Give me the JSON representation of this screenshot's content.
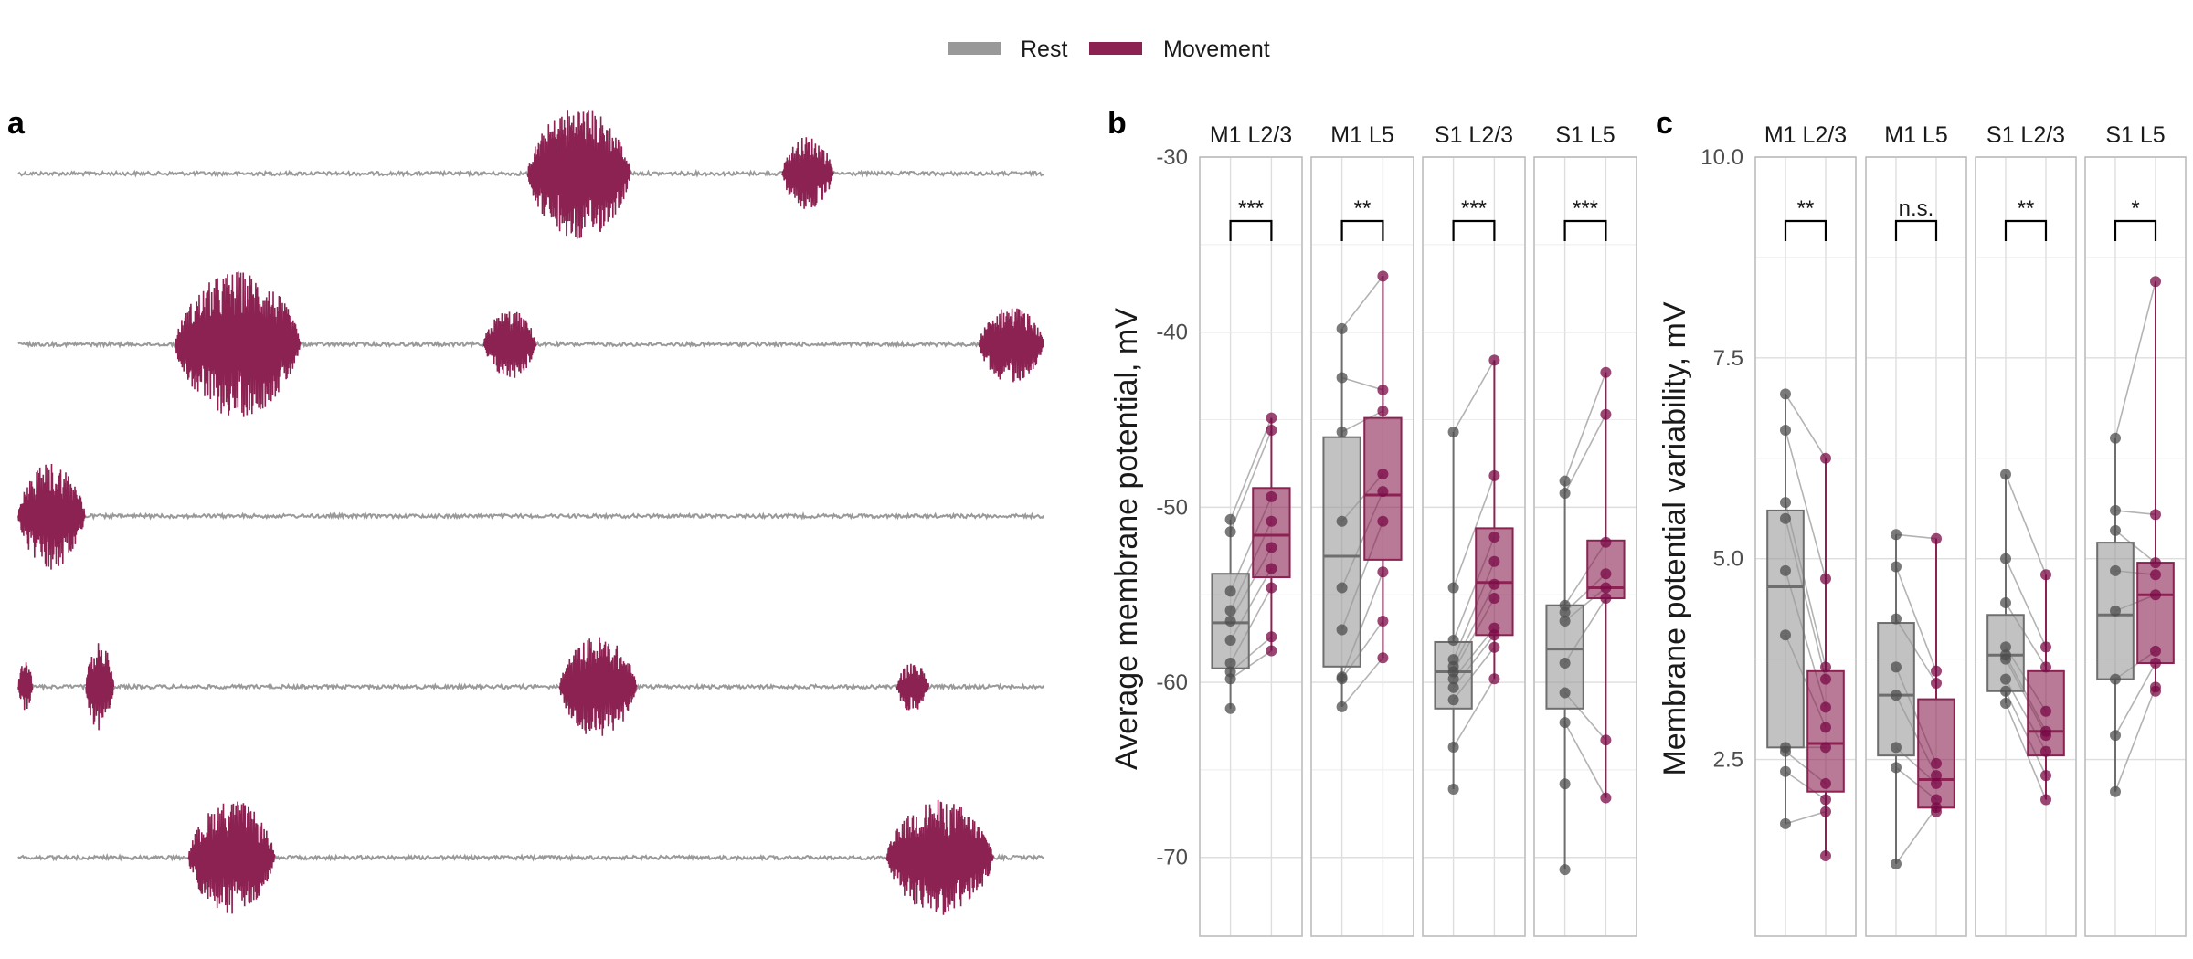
{
  "legend": {
    "items": [
      {
        "label": "Rest",
        "color": "#999999"
      },
      {
        "label": "Movement",
        "color": "#8b2252"
      }
    ]
  },
  "colors": {
    "rest": "#999999",
    "rest_point": "#4d4d4d",
    "movement": "#8b2252",
    "movement_point": "#7a0a45",
    "grid": "#dedede",
    "panel_border": "#bdbdbd",
    "pair_line": "#b3b3b3"
  },
  "panels": {
    "a": {
      "letter": "a"
    },
    "b": {
      "letter": "b"
    },
    "c": {
      "letter": "c"
    }
  },
  "chart_data": [
    {
      "type": "line",
      "panel": "a",
      "description_of_series": "five example membrane traces with movement bursts",
      "traces": [
        {
          "bursts": [
            [
              0.497,
              0.597,
              1.0
            ],
            [
              0.745,
              0.795,
              0.55
            ]
          ]
        },
        {
          "bursts": [
            [
              0.153,
              0.275,
              0.95
            ],
            [
              0.454,
              0.505,
              0.45
            ],
            [
              0.937,
              1.0,
              0.5
            ]
          ]
        },
        {
          "bursts": [
            [
              0.0,
              0.065,
              0.85
            ]
          ]
        },
        {
          "bursts": [
            [
              0.0,
              0.014,
              0.4
            ],
            [
              0.066,
              0.093,
              0.7
            ],
            [
              0.528,
              0.603,
              0.8
            ],
            [
              0.857,
              0.888,
              0.4
            ]
          ]
        },
        {
          "bursts": [
            [
              0.166,
              0.25,
              0.85
            ],
            [
              0.847,
              0.951,
              0.85
            ]
          ]
        }
      ]
    },
    {
      "type": "box",
      "panel": "b",
      "ylabel": "Average membrane potential, mV",
      "ylim": [
        -74.5,
        -30
      ],
      "yticks": [
        -30,
        -40,
        -50,
        -60,
        -70
      ],
      "groups": [
        "M1 L2/3",
        "M1 L5",
        "S1 L2/3",
        "S1 L5"
      ],
      "significance": [
        "***",
        "**",
        "***",
        "***"
      ],
      "series": [
        {
          "name": "Rest",
          "boxes": [
            {
              "q1": -59.2,
              "median": -56.6,
              "q3": -53.8,
              "min": -61.5,
              "max": -50.7
            },
            {
              "q1": -59.1,
              "median": -52.8,
              "q3": -46.0,
              "min": -61.4,
              "max": -39.8
            },
            {
              "q1": -61.5,
              "median": -59.4,
              "q3": -57.7,
              "min": -66.1,
              "max": -45.7
            },
            {
              "q1": -61.5,
              "median": -58.1,
              "q3": -55.6,
              "min": -70.7,
              "max": -48.5
            }
          ],
          "points": [
            [
              -50.7,
              -51.4,
              -54.8,
              -55.9,
              -56.5,
              -57.6,
              -58.9,
              -59.4,
              -59.8,
              -61.5
            ],
            [
              -39.8,
              -42.6,
              -45.7,
              -50.8,
              -54.6,
              -57.0,
              -59.7,
              -59.8,
              -61.4
            ],
            [
              -45.7,
              -54.6,
              -57.6,
              -58.7,
              -59.1,
              -59.4,
              -59.8,
              -60.3,
              -61.0,
              -63.7,
              -66.1
            ],
            [
              -48.5,
              -49.2,
              -55.6,
              -56.0,
              -56.5,
              -58.9,
              -60.6,
              -62.3,
              -65.8,
              -70.7
            ]
          ]
        },
        {
          "name": "Movement",
          "boxes": [
            {
              "q1": -54.0,
              "median": -51.6,
              "q3": -48.9,
              "min": -58.2,
              "max": -44.9
            },
            {
              "q1": -53.0,
              "median": -49.3,
              "q3": -44.9,
              "min": -58.6,
              "max": -36.8
            },
            {
              "q1": -57.3,
              "median": -54.3,
              "q3": -51.2,
              "min": -59.8,
              "max": -41.6
            },
            {
              "q1": -55.2,
              "median": -54.6,
              "q3": -51.9,
              "min": -66.6,
              "max": -42.3
            }
          ],
          "points": [
            [
              -44.9,
              -45.6,
              -49.4,
              -50.8,
              -52.3,
              -53.5,
              -54.6,
              -57.4,
              -58.2
            ],
            [
              -36.8,
              -43.3,
              -44.5,
              -48.1,
              -49.1,
              -50.8,
              -53.7,
              -56.5,
              -58.6
            ],
            [
              -41.6,
              -48.2,
              -51.7,
              -53.1,
              -54.4,
              -55.2,
              -56.9,
              -57.3,
              -58.0,
              -59.8
            ],
            [
              -42.3,
              -44.7,
              -52.0,
              -53.8,
              -54.6,
              -55.2,
              -63.3,
              -66.6
            ]
          ]
        }
      ]
    },
    {
      "type": "box",
      "panel": "c",
      "ylabel": "Membrane potential variability, mV",
      "ylim": [
        0.3,
        10.0
      ],
      "yticks": [
        2.5,
        5.0,
        7.5,
        10.0
      ],
      "ytick_labels": [
        "2.5",
        "5.0",
        "7.5",
        "10.0"
      ],
      "groups": [
        "M1 L2/3",
        "M1 L5",
        "S1 L2/3",
        "S1 L5"
      ],
      "significance": [
        "**",
        "n.s.",
        "**",
        "*"
      ],
      "series": [
        {
          "name": "Rest",
          "boxes": [
            {
              "q1": 2.65,
              "median": 4.65,
              "q3": 5.6,
              "min": 1.7,
              "max": 7.05
            },
            {
              "q1": 2.55,
              "median": 3.3,
              "q3": 4.2,
              "min": 1.2,
              "max": 5.3
            },
            {
              "q1": 3.35,
              "median": 3.8,
              "q3": 4.3,
              "min": 3.2,
              "max": 6.05
            },
            {
              "q1": 3.5,
              "median": 4.3,
              "q3": 5.2,
              "min": 2.1,
              "max": 6.5
            }
          ],
          "points": [
            [
              7.05,
              6.6,
              5.7,
              5.5,
              4.85,
              4.05,
              2.65,
              2.6,
              2.35,
              1.7
            ],
            [
              5.3,
              4.9,
              4.25,
              3.65,
              3.3,
              2.65,
              2.4,
              1.2
            ],
            [
              6.05,
              5.0,
              4.45,
              3.9,
              3.8,
              3.75,
              3.5,
              3.35,
              3.2
            ],
            [
              6.5,
              5.6,
              5.35,
              4.85,
              4.35,
              3.5,
              2.8,
              2.1
            ]
          ]
        },
        {
          "name": "Movement",
          "boxes": [
            {
              "q1": 2.1,
              "median": 2.7,
              "q3": 3.6,
              "min": 1.3,
              "max": 6.25
            },
            {
              "q1": 1.9,
              "median": 2.25,
              "q3": 3.25,
              "min": 1.85,
              "max": 5.25
            },
            {
              "q1": 2.55,
              "median": 2.85,
              "q3": 3.6,
              "min": 2.0,
              "max": 4.8
            },
            {
              "q1": 3.7,
              "median": 4.55,
              "q3": 4.95,
              "min": 3.35,
              "max": 8.45
            }
          ],
          "points": [
            [
              6.25,
              4.75,
              3.65,
              3.5,
              3.15,
              2.9,
              2.65,
              2.2,
              2.0,
              1.85,
              1.3
            ],
            [
              5.25,
              3.6,
              3.45,
              2.45,
              2.3,
              2.2,
              2.0,
              1.9,
              1.85
            ],
            [
              4.8,
              3.9,
              3.65,
              3.1,
              2.85,
              2.8,
              2.6,
              2.3,
              2.0
            ],
            [
              8.45,
              5.55,
              4.95,
              4.8,
              4.55,
              3.85,
              3.7,
              3.4,
              3.35
            ]
          ]
        }
      ]
    }
  ]
}
